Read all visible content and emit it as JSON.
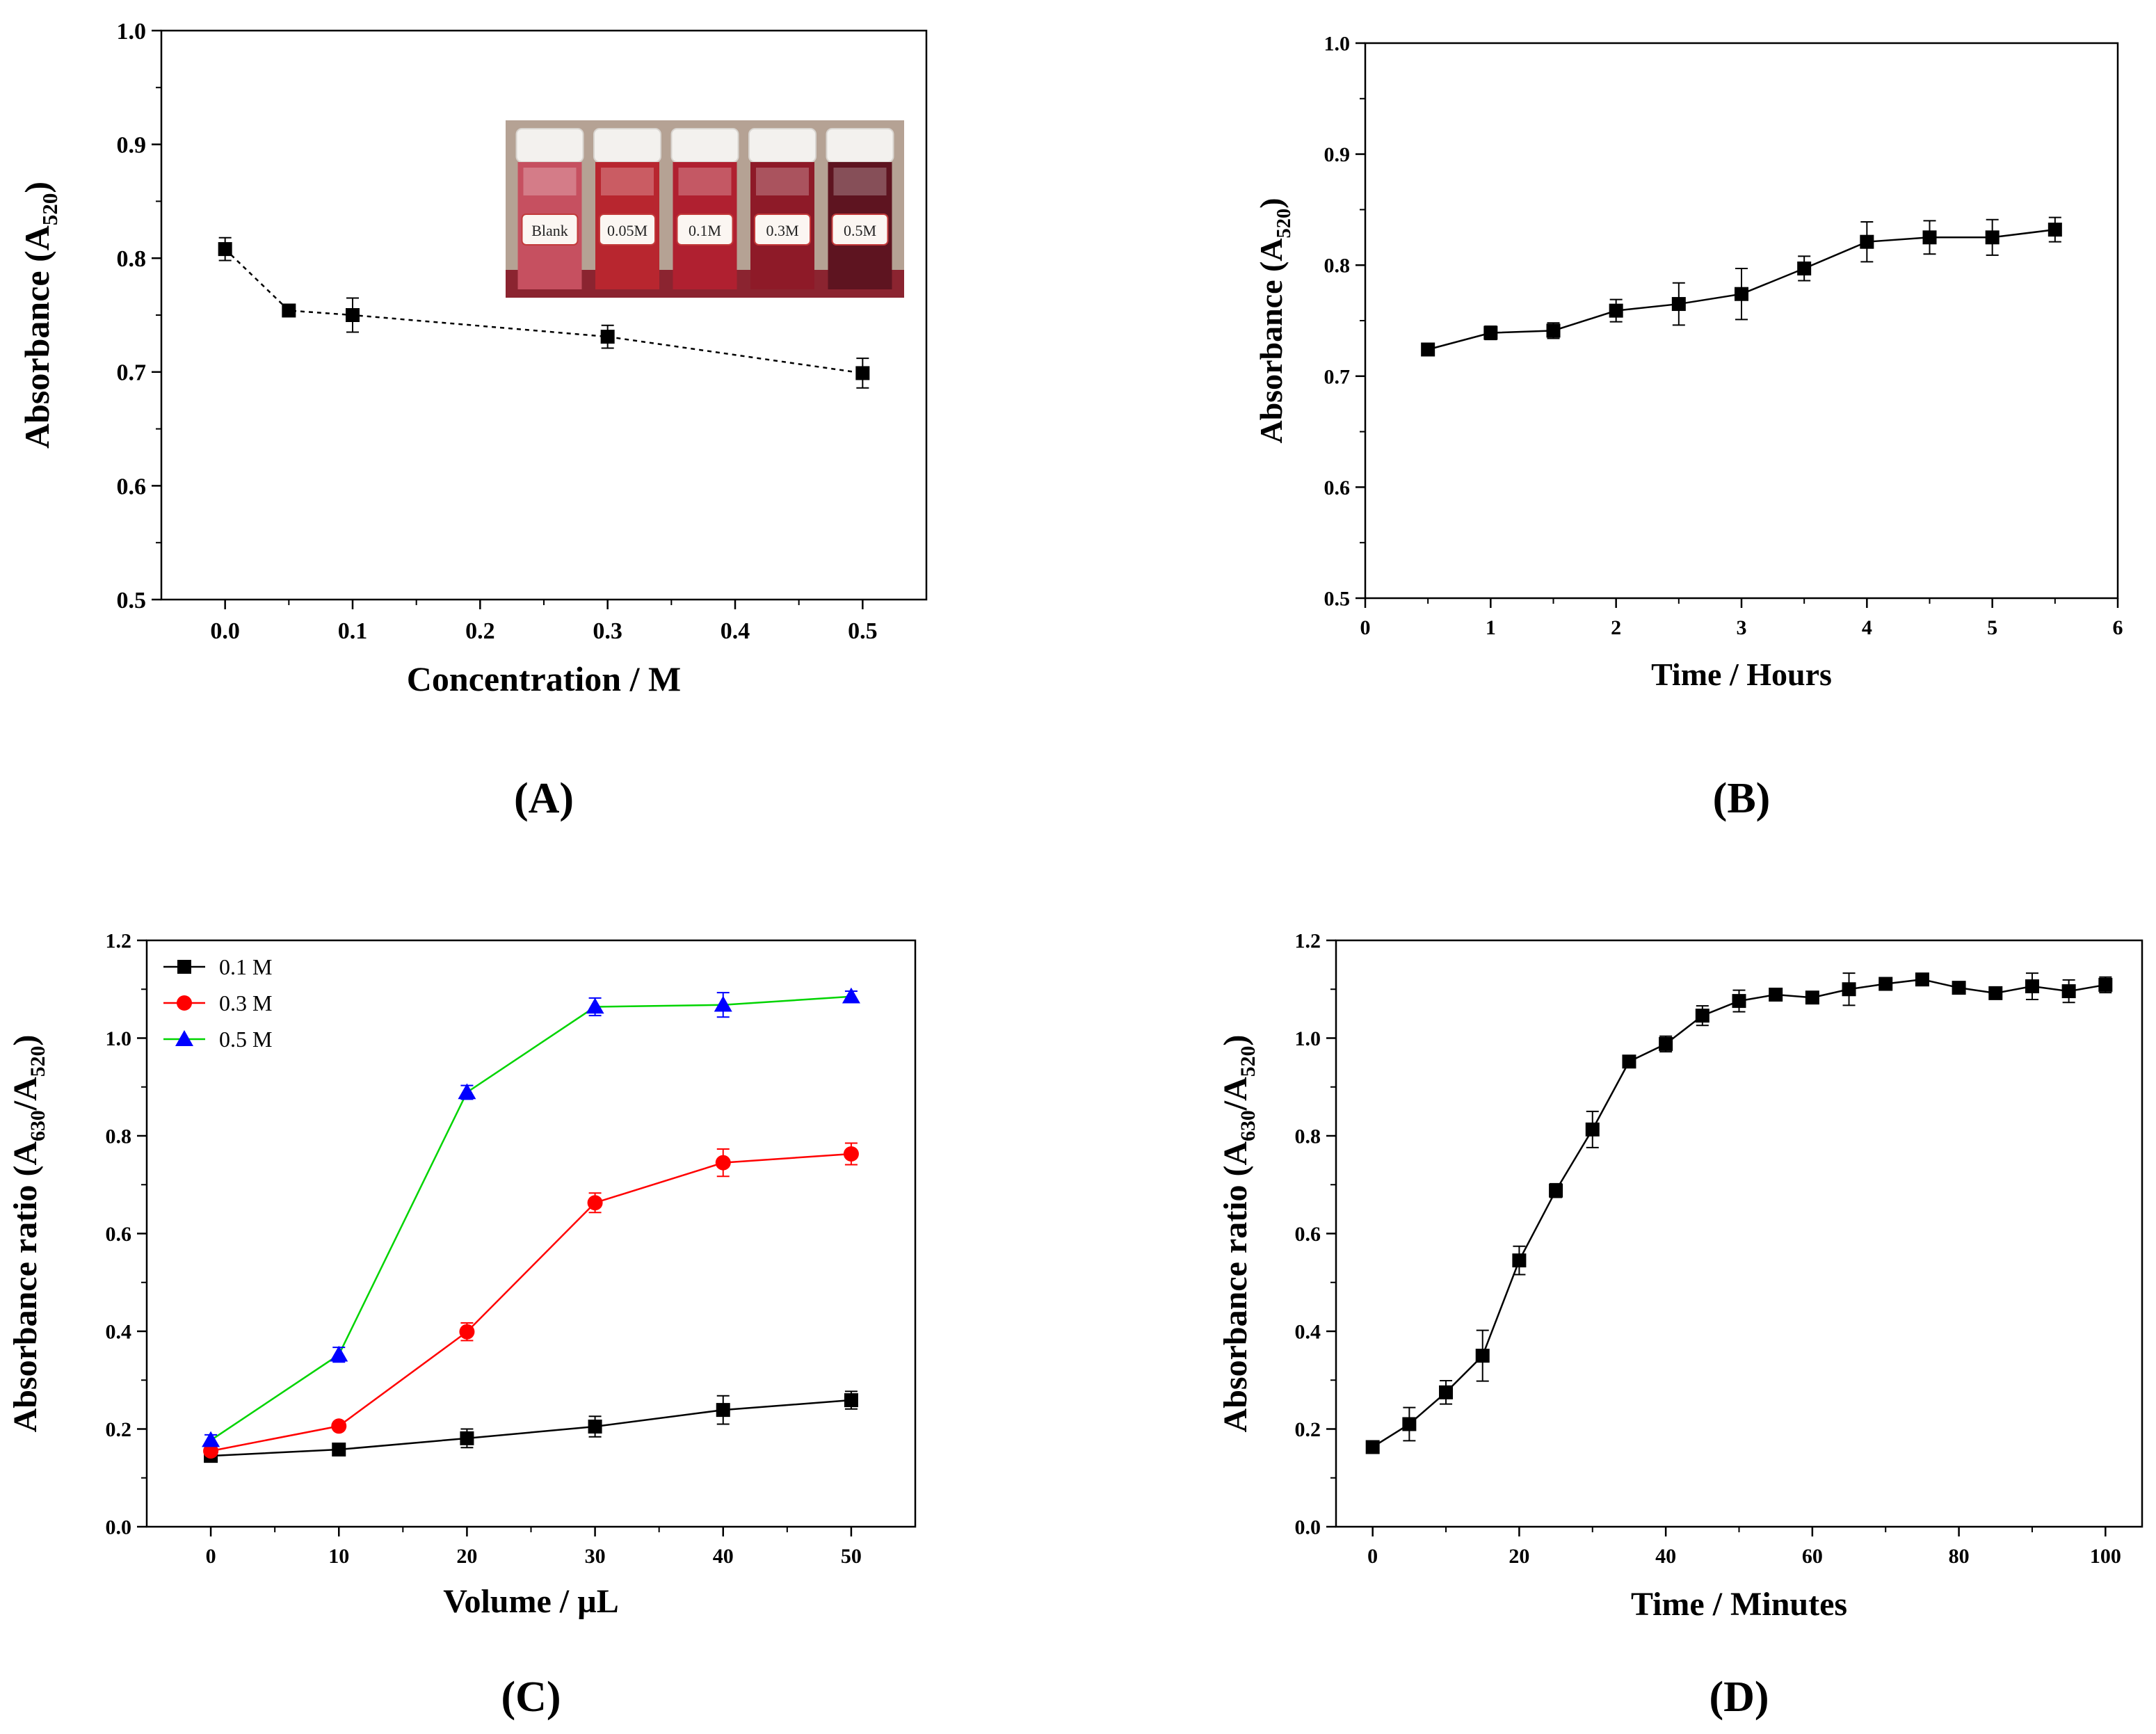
{
  "chart_data": [
    {
      "id": "A",
      "panel_label": "(A)",
      "type": "line",
      "title": "",
      "xlabel": "Concentration / M",
      "ylabel_main": "Absorbance (A",
      "ylabel_sub": "520",
      "ylabel_tail": ")",
      "xlim": [
        -0.05,
        0.55
      ],
      "ylim": [
        0.5,
        1.0
      ],
      "xticks": [
        0.0,
        0.1,
        0.2,
        0.3,
        0.4,
        0.5
      ],
      "xtick_labels": [
        "0.0",
        "0.1",
        "0.2",
        "0.3",
        "0.4",
        "0.5"
      ],
      "yticks": [
        0.5,
        0.6,
        0.7,
        0.8,
        0.9,
        1.0
      ],
      "ytick_labels": [
        "0.5",
        "0.6",
        "0.7",
        "0.8",
        "0.9",
        "1.0"
      ],
      "series": [
        {
          "name": "Absorbance",
          "color": "#000000",
          "marker": "square",
          "dashed": true,
          "x": [
            0.0,
            0.05,
            0.1,
            0.3,
            0.5
          ],
          "y": [
            0.808,
            0.754,
            0.75,
            0.731,
            0.699
          ],
          "err": [
            0.01,
            0.003,
            0.015,
            0.01,
            0.013
          ]
        }
      ],
      "inset": {
        "description": "photo of five vials",
        "vial_labels": [
          "Blank",
          "0.05M",
          "0.1M",
          "0.3M",
          "0.5M"
        ],
        "vial_colors": [
          "#c65060",
          "#b8262f",
          "#b02030",
          "#8e1a28",
          "#5e1420"
        ]
      }
    },
    {
      "id": "B",
      "panel_label": "(B)",
      "type": "line",
      "title": "",
      "xlabel": "Time / Hours",
      "ylabel_main": "Absorbance (A",
      "ylabel_sub": "520",
      "ylabel_tail": ")",
      "xlim": [
        0,
        6
      ],
      "ylim": [
        0.5,
        1.0
      ],
      "xticks": [
        0,
        1,
        2,
        3,
        4,
        5,
        6
      ],
      "xtick_labels": [
        "0",
        "1",
        "2",
        "3",
        "4",
        "5",
        "6"
      ],
      "yticks": [
        0.5,
        0.6,
        0.7,
        0.8,
        0.9,
        1.0
      ],
      "ytick_labels": [
        "0.5",
        "0.6",
        "0.7",
        "0.8",
        "0.9",
        "1.0"
      ],
      "series": [
        {
          "name": "Absorbance",
          "color": "#000000",
          "marker": "square",
          "dashed": false,
          "x": [
            0.5,
            1.0,
            1.5,
            2.0,
            2.5,
            3.0,
            3.5,
            4.0,
            4.5,
            5.0,
            5.5
          ],
          "y": [
            0.724,
            0.739,
            0.741,
            0.759,
            0.765,
            0.774,
            0.797,
            0.821,
            0.825,
            0.825,
            0.832
          ],
          "err": [
            0.004,
            0.006,
            0.007,
            0.01,
            0.019,
            0.023,
            0.011,
            0.018,
            0.015,
            0.016,
            0.011
          ]
        }
      ]
    },
    {
      "id": "C",
      "panel_label": "(C)",
      "type": "line",
      "title": "",
      "xlabel": "Volume / µL",
      "ylabel_main": "Absorbance ratio (A",
      "ylabel_sub": "630",
      "ylabel_mid": "/A",
      "ylabel_sub2": "520",
      "ylabel_tail": ")",
      "xlim": [
        -5,
        55
      ],
      "ylim": [
        0.0,
        1.2
      ],
      "xticks": [
        0,
        10,
        20,
        30,
        40,
        50
      ],
      "xtick_labels": [
        "0",
        "10",
        "20",
        "30",
        "40",
        "50"
      ],
      "yticks": [
        0.0,
        0.2,
        0.4,
        0.6,
        0.8,
        1.0,
        1.2
      ],
      "ytick_labels": [
        "0.0",
        "0.2",
        "0.4",
        "0.6",
        "0.8",
        "1.0",
        "1.2"
      ],
      "legend_position": "top-left",
      "series": [
        {
          "name": "0.1 M",
          "color": "#000000",
          "line_color": "#000000",
          "marker": "square",
          "dashed": false,
          "x": [
            0,
            10,
            20,
            30,
            40,
            50
          ],
          "y": [
            0.145,
            0.158,
            0.181,
            0.205,
            0.239,
            0.259
          ],
          "err": [
            0.012,
            0.006,
            0.019,
            0.021,
            0.029,
            0.018
          ]
        },
        {
          "name": "0.3 M",
          "color": "#ff0000",
          "line_color": "#ff0000",
          "marker": "circle",
          "dashed": false,
          "x": [
            0,
            10,
            20,
            30,
            40,
            50
          ],
          "y": [
            0.155,
            0.206,
            0.399,
            0.663,
            0.745,
            0.763
          ],
          "err": [
            0.008,
            0.007,
            0.018,
            0.02,
            0.028,
            0.022
          ]
        },
        {
          "name": "0.5 M",
          "color": "#0000ff",
          "line_color": "#00d400",
          "marker": "triangle",
          "dashed": false,
          "x": [
            0,
            10,
            20,
            30,
            40,
            50
          ],
          "y": [
            0.177,
            0.352,
            0.889,
            1.064,
            1.068,
            1.085
          ],
          "err": [
            0.011,
            0.015,
            0.014,
            0.018,
            0.025,
            0.011
          ]
        }
      ]
    },
    {
      "id": "D",
      "panel_label": "(D)",
      "type": "line",
      "title": "",
      "xlabel": "Time / Minutes",
      "ylabel_main": "Absorbance ratio (A",
      "ylabel_sub": "630",
      "ylabel_mid": "/A",
      "ylabel_sub2": "520",
      "ylabel_tail": ")",
      "xlim": [
        -5,
        105
      ],
      "ylim": [
        0.0,
        1.2
      ],
      "xticks": [
        0,
        20,
        40,
        60,
        80,
        100
      ],
      "xtick_labels": [
        "0",
        "20",
        "40",
        "60",
        "80",
        "100"
      ],
      "yticks": [
        0.0,
        0.2,
        0.4,
        0.6,
        0.8,
        1.0,
        1.2
      ],
      "ytick_labels": [
        "0.0",
        "0.2",
        "0.4",
        "0.6",
        "0.8",
        "1.0",
        "1.2"
      ],
      "series": [
        {
          "name": "Absorbance ratio",
          "color": "#000000",
          "marker": "square",
          "dashed": false,
          "x": [
            0,
            5,
            10,
            15,
            20,
            25,
            30,
            35,
            40,
            45,
            50,
            55,
            60,
            65,
            70,
            75,
            80,
            85,
            90,
            95,
            100
          ],
          "y": [
            0.163,
            0.21,
            0.275,
            0.35,
            0.545,
            0.688,
            0.813,
            0.952,
            0.988,
            1.046,
            1.076,
            1.089,
            1.083,
            1.1,
            1.111,
            1.12,
            1.103,
            1.092,
            1.106,
            1.096,
            1.109
          ],
          "err": [
            0.006,
            0.034,
            0.024,
            0.052,
            0.029,
            0.014,
            0.037,
            0.008,
            0.016,
            0.02,
            0.022,
            0.012,
            0.012,
            0.033,
            0.012,
            0.01,
            0.01,
            0.01,
            0.027,
            0.023,
            0.016
          ]
        }
      ]
    }
  ]
}
